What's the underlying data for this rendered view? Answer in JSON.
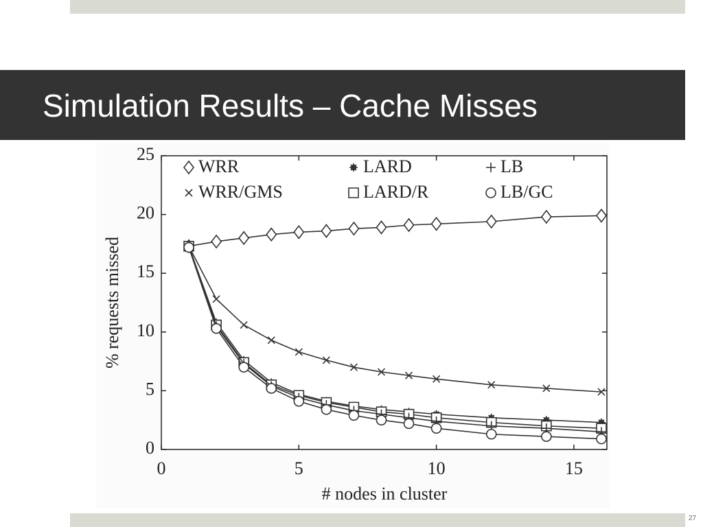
{
  "slide": {
    "title": "Simulation Results – Cache Misses",
    "page_number": "27"
  },
  "chart_data": {
    "type": "line",
    "xlabel": "# nodes in cluster",
    "ylabel": "% requests missed",
    "x": [
      1,
      2,
      3,
      4,
      5,
      6,
      7,
      8,
      9,
      10,
      12,
      14,
      16
    ],
    "xlim": [
      0,
      16.2
    ],
    "ylim": [
      0,
      25
    ],
    "xticks": [
      0,
      5,
      10,
      15
    ],
    "yticks": [
      0,
      5,
      10,
      15,
      20,
      25
    ],
    "grid": false,
    "legend": "top",
    "series": [
      {
        "name": "WRR",
        "color": "#333333",
        "marker": "diamond",
        "values": [
          17.3,
          17.7,
          18,
          18.3,
          18.5,
          18.6,
          18.8,
          18.9,
          19.1,
          19.2,
          19.4,
          19.8,
          19.9
        ]
      },
      {
        "name": "WRR/GMS",
        "color": "#333333",
        "marker": "x",
        "values": [
          17.3,
          12.8,
          10.6,
          9.3,
          8.3,
          7.6,
          7.0,
          6.6,
          6.3,
          6.0,
          5.5,
          5.2,
          4.9
        ]
      },
      {
        "name": "LARD",
        "color": "#333333",
        "marker": "star",
        "values": [
          17.3,
          10.8,
          7.6,
          5.7,
          4.7,
          4.1,
          3.7,
          3.4,
          3.2,
          3.0,
          2.7,
          2.5,
          2.3
        ]
      },
      {
        "name": "LARD/R",
        "color": "#333333",
        "marker": "square",
        "values": [
          17.3,
          10.6,
          7.4,
          5.5,
          4.6,
          4.0,
          3.6,
          3.2,
          3.0,
          2.7,
          2.3,
          2.0,
          1.8
        ]
      },
      {
        "name": "LB",
        "color": "#333333",
        "marker": "plus",
        "values": [
          17.3,
          10.5,
          7.3,
          5.4,
          4.4,
          3.8,
          3.3,
          3.0,
          2.7,
          2.4,
          2.0,
          1.8,
          1.5
        ]
      },
      {
        "name": "LB/GC",
        "color": "#333333",
        "marker": "circle",
        "values": [
          17.2,
          10.3,
          7.0,
          5.2,
          4.1,
          3.4,
          2.9,
          2.5,
          2.2,
          1.8,
          1.3,
          1.1,
          0.9
        ]
      }
    ]
  }
}
